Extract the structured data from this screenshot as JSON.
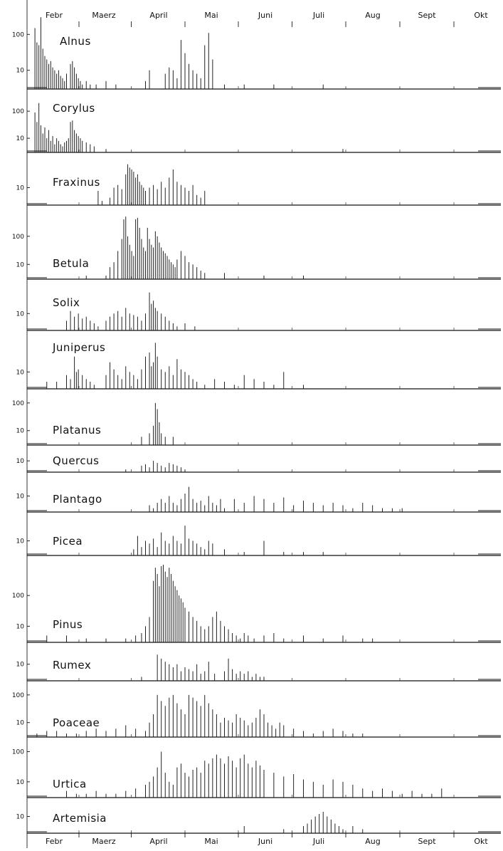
{
  "chart_data": {
    "type": "bar",
    "y_scale": "log",
    "grid": false,
    "months": [
      "Febr",
      "Maerz",
      "April",
      "Mai",
      "Juni",
      "Juli",
      "Aug",
      "Sept",
      "Okt"
    ],
    "series": [
      {
        "name": "Alnus",
        "yticks": [
          "10",
          "100"
        ],
        "ylim": [
          3,
          400
        ],
        "x": [
          4,
          5,
          6,
          7,
          8,
          9,
          10,
          11,
          12,
          13,
          14,
          15,
          16,
          17,
          18,
          19,
          20,
          22,
          23,
          24,
          25,
          26,
          27,
          28,
          30,
          32,
          35,
          40,
          45,
          60,
          62,
          70,
          72,
          74,
          76,
          78,
          80,
          82,
          84,
          86,
          88,
          90,
          92,
          94,
          100,
          110,
          125,
          150
        ],
        "values": [
          150,
          60,
          50,
          300,
          40,
          25,
          20,
          15,
          18,
          12,
          10,
          8,
          10,
          7,
          6,
          5,
          8,
          15,
          18,
          12,
          8,
          6,
          5,
          4,
          5,
          4,
          4,
          5,
          4,
          5,
          10,
          8,
          12,
          10,
          6,
          70,
          30,
          15,
          10,
          8,
          6,
          50,
          110,
          20,
          4,
          4,
          4,
          4
        ]
      },
      {
        "name": "Corylus",
        "yticks": [
          "10",
          "100"
        ],
        "ylim": [
          3,
          300
        ],
        "x": [
          4,
          5,
          6,
          7,
          8,
          9,
          10,
          11,
          12,
          13,
          14,
          15,
          16,
          17,
          18,
          19,
          20,
          21,
          22,
          23,
          24,
          25,
          26,
          27,
          28,
          30,
          32,
          34,
          40,
          160
        ],
        "values": [
          90,
          40,
          200,
          30,
          15,
          25,
          10,
          20,
          8,
          12,
          6,
          10,
          8,
          6,
          5,
          7,
          8,
          10,
          40,
          45,
          20,
          15,
          12,
          10,
          8,
          7,
          6,
          5,
          4,
          4
        ]
      },
      {
        "name": "Fraxinus",
        "yticks": [
          "10"
        ],
        "ylim": [
          3,
          60
        ],
        "x": [
          36,
          38,
          42,
          44,
          46,
          48,
          50,
          51,
          52,
          53,
          54,
          55,
          56,
          57,
          58,
          59,
          60,
          62,
          64,
          66,
          68,
          70,
          72,
          74,
          76,
          78,
          80,
          82,
          84,
          86,
          88,
          90
        ],
        "values": [
          8,
          4,
          5,
          10,
          12,
          9,
          25,
          50,
          40,
          35,
          30,
          20,
          25,
          15,
          12,
          10,
          8,
          10,
          12,
          9,
          15,
          10,
          20,
          35,
          15,
          12,
          10,
          8,
          12,
          6,
          5,
          8
        ]
      },
      {
        "name": "Betula",
        "yticks": [
          "10",
          "100"
        ],
        "ylim": [
          3,
          600
        ],
        "x": [
          30,
          40,
          42,
          44,
          46,
          48,
          49,
          50,
          51,
          52,
          53,
          54,
          55,
          56,
          57,
          58,
          59,
          60,
          61,
          62,
          63,
          64,
          65,
          66,
          67,
          68,
          69,
          70,
          71,
          72,
          73,
          74,
          75,
          76,
          78,
          80,
          82,
          84,
          86,
          88,
          90,
          100,
          120,
          140
        ],
        "values": [
          4,
          4,
          8,
          12,
          30,
          80,
          400,
          500,
          100,
          50,
          30,
          20,
          400,
          450,
          200,
          80,
          40,
          30,
          200,
          80,
          50,
          40,
          150,
          100,
          60,
          40,
          30,
          25,
          20,
          15,
          12,
          10,
          8,
          15,
          30,
          20,
          12,
          10,
          8,
          6,
          5,
          5,
          4,
          4
        ]
      },
      {
        "name": "Solix",
        "yticks": [
          "10"
        ],
        "ylim": [
          3,
          60
        ],
        "x": [
          20,
          22,
          24,
          26,
          28,
          30,
          32,
          34,
          36,
          40,
          42,
          44,
          46,
          48,
          50,
          52,
          54,
          56,
          58,
          60,
          62,
          63,
          64,
          65,
          66,
          68,
          70,
          72,
          74,
          76,
          80,
          85
        ],
        "values": [
          6,
          12,
          8,
          10,
          7,
          8,
          6,
          5,
          4,
          6,
          8,
          10,
          12,
          8,
          15,
          10,
          9,
          8,
          6,
          10,
          45,
          20,
          25,
          15,
          12,
          10,
          8,
          6,
          5,
          4,
          5,
          4
        ]
      },
      {
        "name": "Juniperus",
        "yticks": [
          "10"
        ],
        "ylim": [
          3,
          100
        ],
        "x": [
          10,
          15,
          20,
          22,
          24,
          25,
          26,
          28,
          30,
          32,
          34,
          40,
          42,
          44,
          46,
          48,
          50,
          52,
          54,
          56,
          58,
          60,
          62,
          63,
          64,
          65,
          66,
          68,
          70,
          72,
          74,
          76,
          78,
          80,
          82,
          84,
          86,
          90,
          95,
          100,
          105,
          110,
          115,
          120,
          125,
          130,
          140
        ],
        "values": [
          5,
          5,
          8,
          6,
          30,
          10,
          12,
          8,
          6,
          5,
          4,
          8,
          20,
          12,
          8,
          6,
          15,
          10,
          8,
          6,
          12,
          30,
          40,
          15,
          20,
          80,
          30,
          12,
          10,
          15,
          8,
          25,
          12,
          10,
          8,
          6,
          5,
          4,
          6,
          5,
          4,
          8,
          6,
          5,
          4,
          10,
          4
        ]
      },
      {
        "name": "Platanus",
        "yticks": [
          "10",
          "100"
        ],
        "ylim": [
          3,
          150
        ],
        "x": [
          58,
          62,
          64,
          65,
          66,
          67,
          68,
          70,
          74
        ],
        "values": [
          6,
          8,
          15,
          100,
          60,
          20,
          8,
          6,
          6
        ]
      },
      {
        "name": "Quercus",
        "yticks": [
          "10"
        ],
        "ylim": [
          3,
          20
        ],
        "x": [
          50,
          58,
          60,
          62,
          64,
          66,
          68,
          70,
          72,
          74,
          76,
          78,
          80
        ],
        "values": [
          4,
          6,
          7,
          5,
          10,
          8,
          6,
          5,
          8,
          7,
          6,
          5,
          4
        ]
      },
      {
        "name": "Plantago",
        "yticks": [
          "10"
        ],
        "ylim": [
          3,
          30
        ],
        "x": [
          62,
          64,
          66,
          68,
          70,
          72,
          74,
          76,
          78,
          80,
          82,
          84,
          86,
          88,
          90,
          92,
          94,
          96,
          98,
          100,
          105,
          110,
          115,
          120,
          125,
          130,
          135,
          140,
          145,
          150,
          155,
          160,
          165,
          170,
          175,
          180,
          185,
          190
        ],
        "values": [
          5,
          4,
          6,
          8,
          6,
          10,
          6,
          5,
          8,
          12,
          20,
          8,
          6,
          7,
          5,
          10,
          6,
          5,
          8,
          4,
          8,
          6,
          10,
          8,
          6,
          9,
          5,
          7,
          6,
          5,
          6,
          5,
          4,
          6,
          5,
          4,
          4,
          4
        ]
      },
      {
        "name": "Picea",
        "yticks": [
          "10"
        ],
        "ylim": [
          3,
          50
        ],
        "x": [
          54,
          56,
          58,
          60,
          62,
          64,
          66,
          68,
          70,
          72,
          74,
          76,
          78,
          80,
          82,
          84,
          86,
          88,
          90,
          92,
          94,
          100,
          110,
          120,
          130,
          140,
          150
        ],
        "values": [
          5,
          15,
          6,
          10,
          8,
          12,
          6,
          20,
          10,
          8,
          15,
          10,
          8,
          35,
          12,
          10,
          8,
          6,
          5,
          10,
          8,
          5,
          4,
          10,
          4,
          4,
          4
        ]
      },
      {
        "name": "Pinus",
        "yticks": [
          "10",
          "100"
        ],
        "ylim": [
          3,
          1000
        ],
        "x": [
          10,
          20,
          30,
          40,
          50,
          55,
          58,
          60,
          62,
          64,
          65,
          66,
          67,
          68,
          69,
          70,
          71,
          72,
          73,
          74,
          75,
          76,
          77,
          78,
          79,
          80,
          82,
          84,
          86,
          88,
          90,
          92,
          94,
          96,
          98,
          100,
          102,
          104,
          106,
          108,
          110,
          112,
          115,
          120,
          125,
          130,
          140,
          150,
          160,
          170,
          175
        ],
        "values": [
          5,
          5,
          4,
          4,
          4,
          5,
          6,
          10,
          20,
          300,
          800,
          500,
          200,
          900,
          1000,
          600,
          400,
          800,
          500,
          300,
          200,
          150,
          100,
          80,
          60,
          40,
          30,
          20,
          15,
          10,
          8,
          10,
          20,
          30,
          15,
          10,
          8,
          6,
          5,
          4,
          6,
          5,
          4,
          5,
          6,
          4,
          5,
          4,
          5,
          4,
          4
        ]
      },
      {
        "name": "Rumex",
        "yticks": [
          "10"
        ],
        "ylim": [
          3,
          25
        ],
        "x": [
          58,
          66,
          68,
          70,
          72,
          74,
          76,
          78,
          80,
          82,
          84,
          86,
          88,
          90,
          92,
          95,
          100,
          102,
          104,
          106,
          108,
          110,
          112,
          114,
          116,
          118,
          120
        ],
        "values": [
          4,
          20,
          15,
          12,
          10,
          8,
          10,
          6,
          8,
          7,
          6,
          10,
          5,
          6,
          12,
          5,
          6,
          15,
          7,
          5,
          6,
          5,
          6,
          4,
          5,
          4,
          4
        ]
      },
      {
        "name": "Poaceae",
        "yticks": [
          "10",
          "100"
        ],
        "ylim": [
          3,
          150
        ],
        "x": [
          5,
          10,
          15,
          20,
          25,
          30,
          35,
          40,
          45,
          50,
          55,
          60,
          62,
          64,
          66,
          68,
          70,
          72,
          74,
          76,
          78,
          80,
          82,
          84,
          86,
          88,
          90,
          92,
          94,
          96,
          98,
          100,
          102,
          104,
          106,
          108,
          110,
          112,
          114,
          116,
          118,
          120,
          122,
          124,
          126,
          128,
          130,
          135,
          140,
          145,
          150,
          155,
          160,
          165,
          170
        ],
        "values": [
          4,
          5,
          5,
          4,
          4,
          5,
          6,
          5,
          6,
          8,
          6,
          5,
          10,
          20,
          100,
          60,
          40,
          80,
          100,
          50,
          30,
          20,
          100,
          80,
          60,
          40,
          100,
          50,
          30,
          20,
          10,
          15,
          12,
          10,
          20,
          15,
          12,
          8,
          10,
          15,
          30,
          20,
          10,
          8,
          6,
          10,
          8,
          6,
          5,
          4,
          5,
          6,
          5,
          4,
          4
        ]
      },
      {
        "name": "Urtica",
        "yticks": [
          "10",
          "100"
        ],
        "ylim": [
          3,
          150
        ],
        "x": [
          20,
          25,
          30,
          35,
          40,
          45,
          50,
          55,
          60,
          62,
          64,
          66,
          68,
          70,
          72,
          74,
          76,
          78,
          80,
          82,
          84,
          86,
          88,
          90,
          92,
          94,
          96,
          98,
          100,
          102,
          104,
          106,
          108,
          110,
          112,
          114,
          116,
          118,
          120,
          125,
          130,
          135,
          140,
          145,
          150,
          155,
          160,
          165,
          170,
          175,
          180,
          185,
          190,
          195,
          200,
          205,
          210
        ],
        "values": [
          5,
          4,
          4,
          5,
          4,
          4,
          5,
          6,
          8,
          10,
          15,
          30,
          100,
          20,
          10,
          8,
          30,
          40,
          20,
          15,
          25,
          30,
          20,
          50,
          40,
          60,
          80,
          60,
          40,
          70,
          50,
          30,
          60,
          80,
          40,
          30,
          50,
          35,
          25,
          20,
          15,
          18,
          12,
          10,
          8,
          12,
          10,
          8,
          6,
          5,
          6,
          5,
          4,
          5,
          4,
          4,
          6
        ]
      },
      {
        "name": "Artemisia",
        "yticks": [
          "10"
        ],
        "ylim": [
          3,
          20
        ],
        "x": [
          110,
          130,
          140,
          142,
          144,
          146,
          148,
          150,
          152,
          154,
          156,
          158,
          160,
          165,
          170
        ],
        "values": [
          5,
          4,
          5,
          6,
          8,
          10,
          12,
          14,
          10,
          8,
          6,
          5,
          4,
          5,
          4
        ]
      }
    ]
  }
}
